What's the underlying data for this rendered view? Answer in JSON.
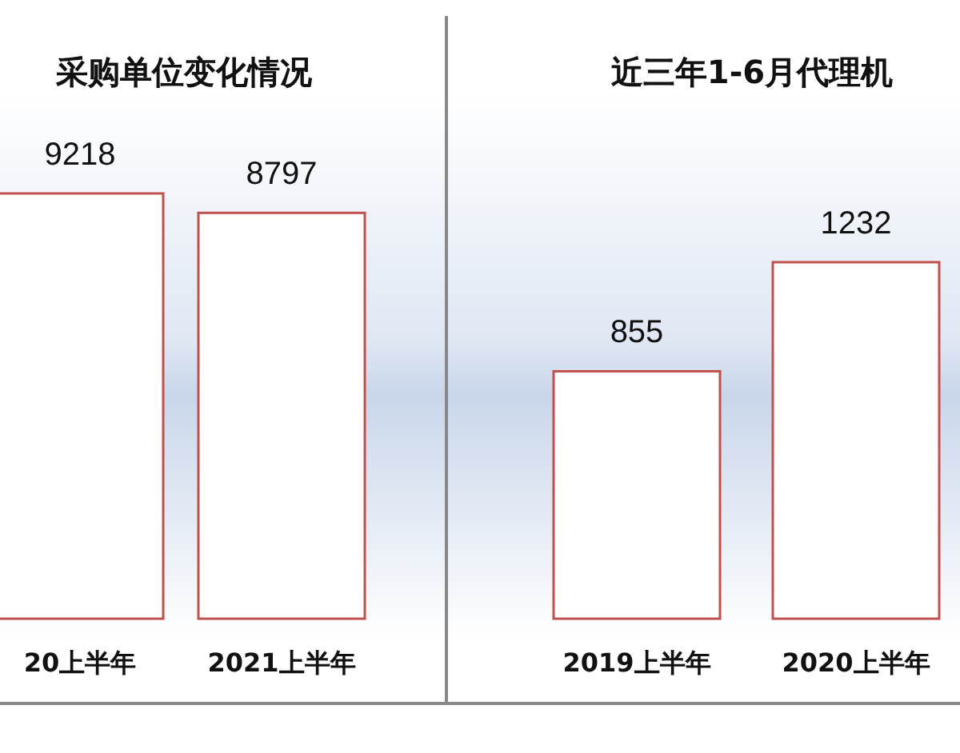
{
  "chart_data": [
    {
      "type": "bar",
      "title": "采购单位变化情况",
      "categories": [
        "20上半年",
        "2021上半年"
      ],
      "values": [
        9218,
        8797
      ],
      "color": "#c0504d",
      "data_labels": true
    },
    {
      "type": "bar",
      "title": "近三年1-6月代理机",
      "categories": [
        "2019上半年",
        "2020上半年"
      ],
      "values": [
        855,
        1232
      ],
      "color": "#c0504d",
      "data_labels": true
    }
  ]
}
